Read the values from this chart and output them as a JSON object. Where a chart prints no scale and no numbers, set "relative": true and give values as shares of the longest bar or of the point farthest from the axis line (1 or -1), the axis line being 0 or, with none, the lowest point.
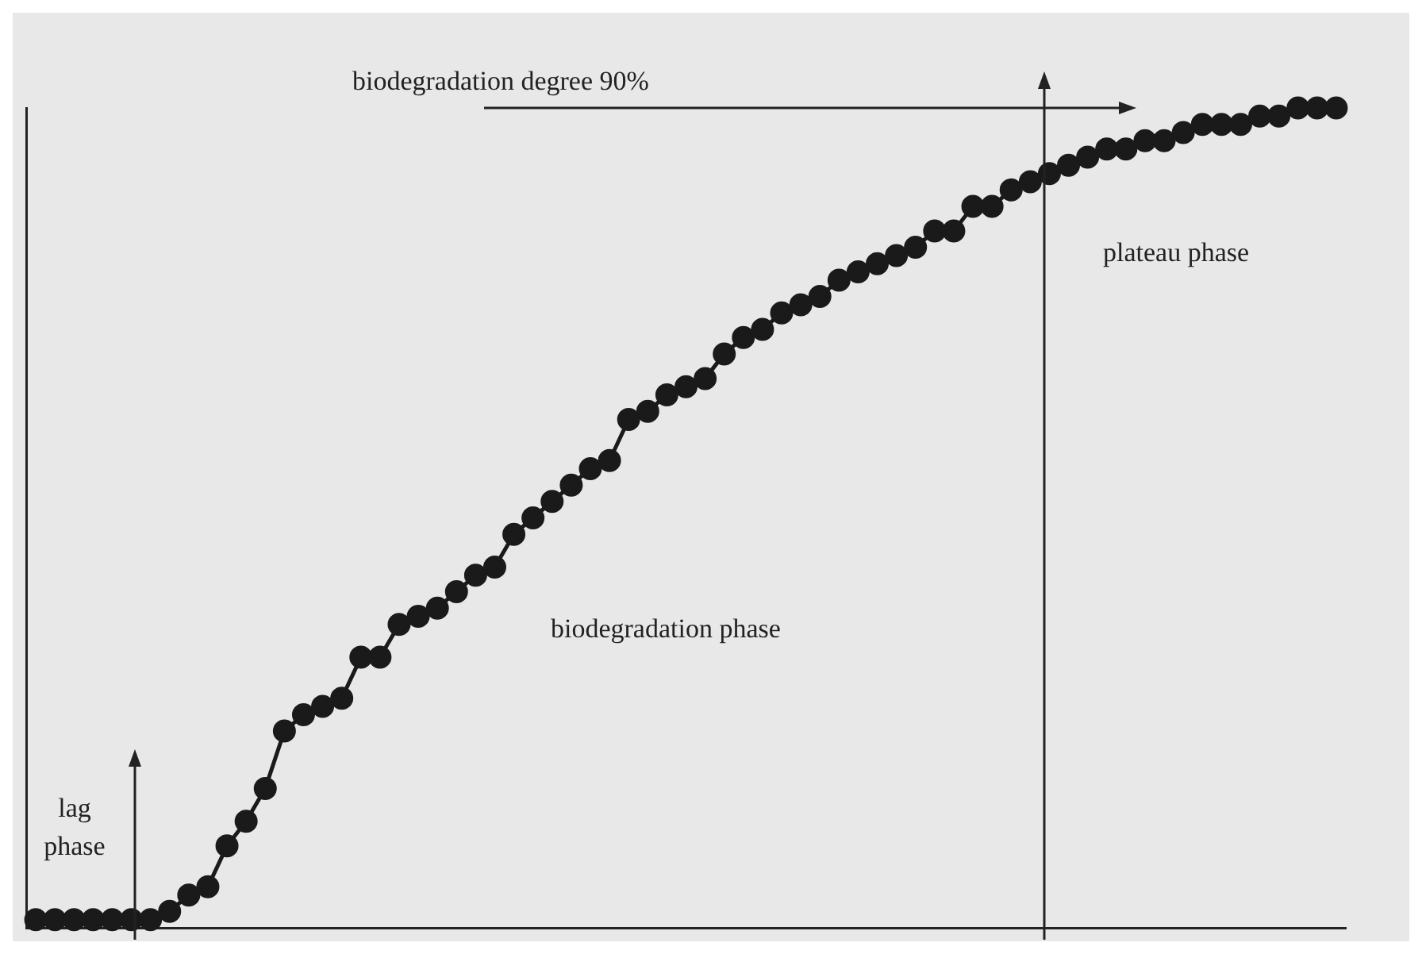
{
  "chart_data": {
    "type": "line",
    "relative": true,
    "marker": "circle",
    "line_style": "solid",
    "grid": false,
    "categories": [
      null,
      null,
      null,
      null,
      null,
      null,
      null,
      null,
      null,
      null,
      null,
      null,
      null,
      null,
      null,
      null,
      null,
      null,
      null,
      null,
      null,
      null,
      null,
      null,
      null,
      null,
      null,
      null,
      null,
      null,
      null,
      null,
      null,
      null,
      null,
      null,
      null,
      null,
      null,
      null,
      null,
      null,
      null,
      null,
      null,
      null,
      null,
      null,
      null,
      null,
      null,
      null,
      null,
      null,
      null,
      null,
      null,
      null,
      null,
      null,
      null,
      null,
      null,
      null,
      null,
      null,
      null,
      null,
      null
    ],
    "series": [
      {
        "color": "#1a1a1a",
        "values": [
          0.01,
          0.01,
          0.01,
          0.01,
          0.01,
          0.01,
          0.01,
          0.02,
          0.04,
          0.05,
          0.1,
          0.13,
          0.17,
          0.24,
          0.26,
          0.27,
          0.28,
          0.33,
          0.33,
          0.37,
          0.38,
          0.39,
          0.41,
          0.43,
          0.44,
          0.48,
          0.5,
          0.52,
          0.54,
          0.56,
          0.57,
          0.62,
          0.63,
          0.65,
          0.66,
          0.67,
          0.7,
          0.72,
          0.73,
          0.75,
          0.76,
          0.77,
          0.79,
          0.8,
          0.81,
          0.82,
          0.83,
          0.85,
          0.85,
          0.88,
          0.88,
          0.9,
          0.91,
          0.92,
          0.93,
          0.94,
          0.95,
          0.95,
          0.96,
          0.96,
          0.97,
          0.98,
          0.98,
          0.98,
          0.99,
          0.99,
          1,
          1,
          1
        ]
      }
    ],
    "annotations": [
      "biodegradation degree 90%",
      "plateau phase",
      "biodegradation phase",
      "lag phase"
    ]
  }
}
